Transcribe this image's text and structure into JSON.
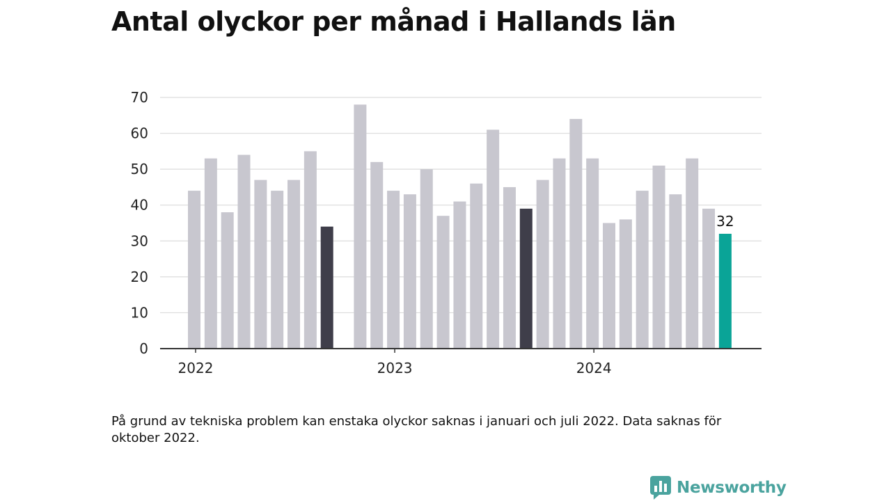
{
  "title": "Antal olyckor per månad i Hallands län",
  "note": "På grund av tekniska problem kan enstaka olyckor saknas i januari och juli 2022. Data saknas för oktober 2022.",
  "brand": {
    "name": "Newsworthy",
    "logo_icon": "bar-chart-speech-icon",
    "color": "#4aa39e"
  },
  "colors": {
    "default": "#c8c7cf",
    "highlight": "#3f3e4a",
    "latest": "#0aa497",
    "grid": "#dcdcdc",
    "axis": "#333333"
  },
  "chart_data": {
    "type": "bar",
    "title": "Antal olyckor per månad i Hallands län",
    "xlabel": "",
    "ylabel": "",
    "ylim": [
      0,
      70
    ],
    "yticks": [
      0,
      10,
      20,
      30,
      40,
      50,
      60,
      70
    ],
    "x_tick_labels": [
      {
        "label": "2022",
        "category": "2022-01"
      },
      {
        "label": "2023",
        "category": "2023-01"
      },
      {
        "label": "2024",
        "category": "2024-01"
      }
    ],
    "grid": true,
    "categories": [
      "2022-01",
      "2022-02",
      "2022-03",
      "2022-04",
      "2022-05",
      "2022-06",
      "2022-07",
      "2022-08",
      "2022-09",
      "2022-10",
      "2022-11",
      "2022-12",
      "2023-01",
      "2023-02",
      "2023-03",
      "2023-04",
      "2023-05",
      "2023-06",
      "2023-07",
      "2023-08",
      "2023-09",
      "2023-10",
      "2023-11",
      "2023-12",
      "2024-01",
      "2024-02",
      "2024-03",
      "2024-04",
      "2024-05",
      "2024-06",
      "2024-07",
      "2024-08",
      "2024-09"
    ],
    "values": [
      44,
      53,
      38,
      54,
      47,
      44,
      47,
      55,
      34,
      null,
      68,
      52,
      44,
      43,
      50,
      37,
      41,
      46,
      61,
      45,
      39,
      47,
      53,
      64,
      53,
      35,
      36,
      44,
      51,
      43,
      53,
      39,
      32
    ],
    "highlighted": [
      "2022-09",
      "2023-09"
    ],
    "latest": "2024-09",
    "data_labels": [
      {
        "category": "2024-09",
        "text": "32"
      }
    ]
  }
}
